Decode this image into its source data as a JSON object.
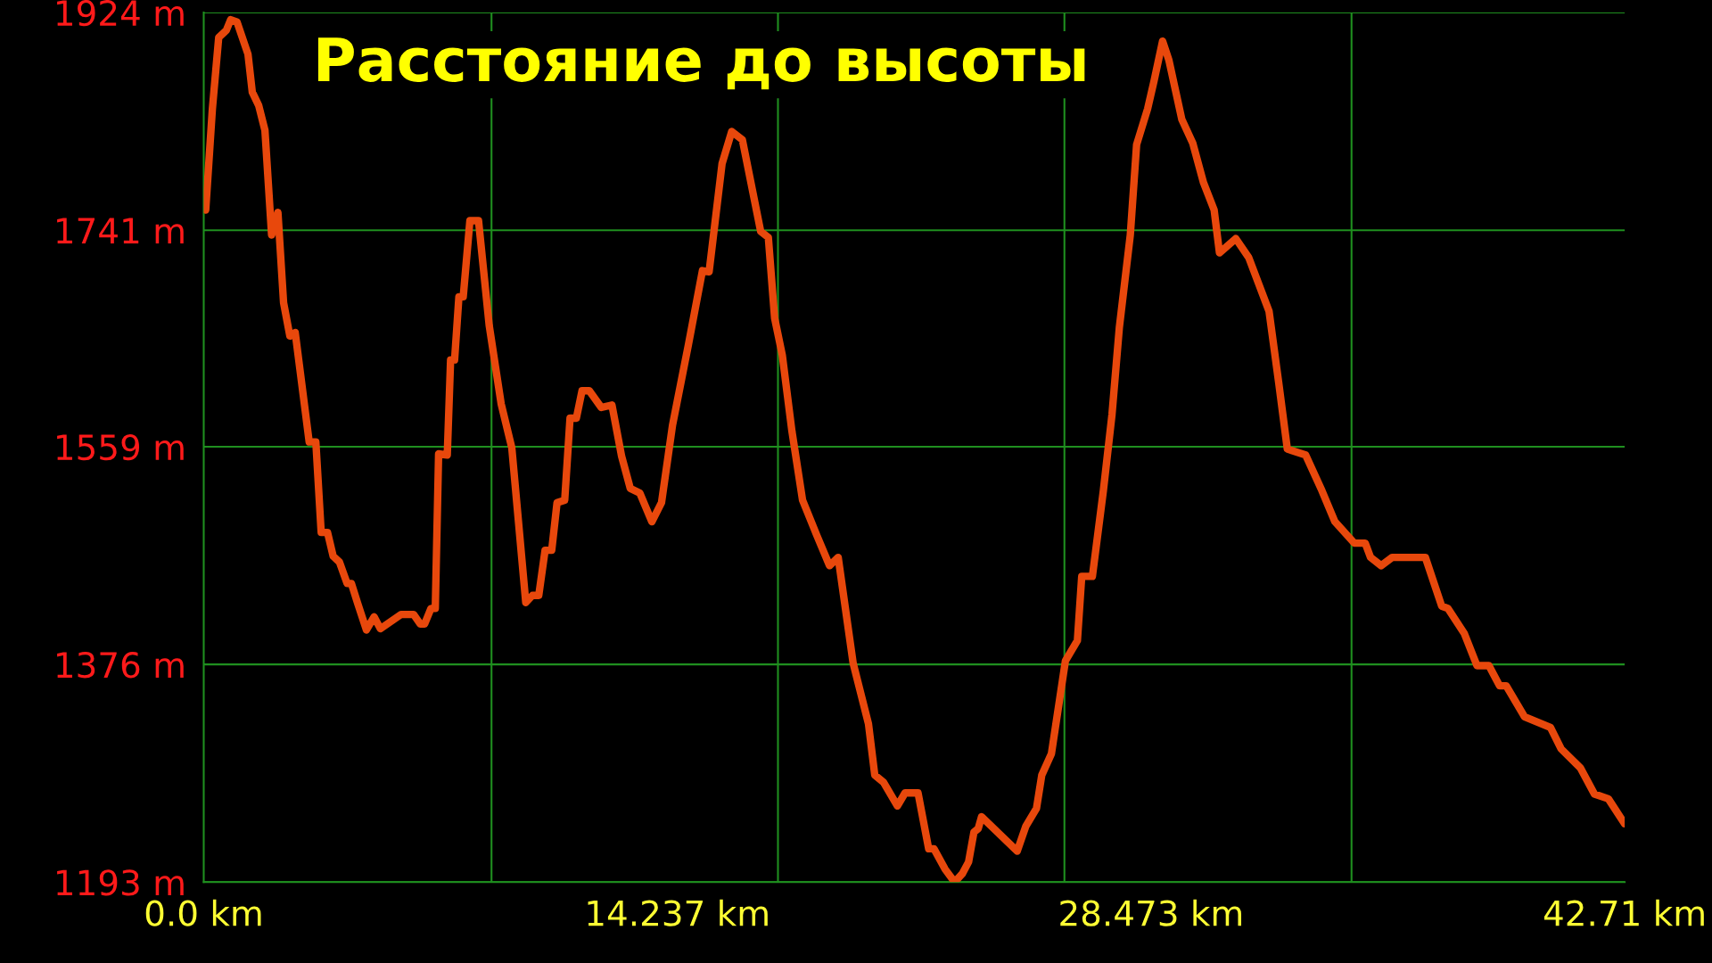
{
  "chart_data": {
    "type": "line",
    "title": "Расстояние до высоты",
    "x": [
      0.06,
      0.26,
      0.45,
      0.68,
      0.81,
      1.0,
      1.33,
      1.46,
      1.65,
      1.84,
      2.04,
      2.23,
      2.4,
      2.59,
      2.75,
      3.17,
      3.37,
      3.53,
      3.72,
      3.89,
      4.08,
      4.31,
      4.44,
      4.63,
      4.89,
      5.12,
      5.31,
      5.93,
      6.31,
      6.51,
      6.64,
      6.83,
      6.96,
      7.06,
      7.32,
      7.42,
      7.54,
      7.67,
      7.8,
      8.0,
      8.26,
      8.58,
      8.94,
      9.26,
      9.68,
      9.88,
      10.07,
      10.26,
      10.46,
      10.62,
      10.85,
      11.01,
      11.2,
      11.37,
      11.59,
      11.95,
      12.27,
      12.56,
      12.82,
      13.11,
      13.47,
      13.76,
      14.09,
      14.57,
      14.99,
      15.19,
      15.58,
      15.87,
      16.19,
      16.74,
      16.97,
      17.16,
      17.39,
      17.68,
      18.0,
      18.42,
      18.81,
      19.07,
      19.52,
      19.98,
      20.17,
      20.43,
      20.85,
      21.08,
      21.47,
      21.79,
      21.95,
      22.28,
      22.57,
      22.8,
      22.99,
      23.15,
      23.28,
      23.38,
      24.45,
      24.71,
      25.03,
      25.19,
      25.48,
      25.9,
      26.26,
      26.39,
      26.71,
      27.04,
      27.3,
      27.52,
      27.85,
      28.04,
      28.37,
      28.56,
      28.82,
      29.01,
      29.4,
      29.73,
      30.05,
      30.37,
      30.53,
      31.02,
      31.41,
      32.02,
      32.31,
      32.57,
      33.12,
      33.61,
      34.0,
      34.58,
      34.91,
      35.07,
      35.39,
      35.72,
      36.72,
      37.21,
      37.4,
      37.89,
      38.27,
      38.63,
      38.95,
      39.15,
      39.7,
      40.48,
      40.8,
      41.38,
      41.8,
      42.22,
      42.71
    ],
    "series": [
      {
        "color": "#e8480c",
        "values": [
          1758,
          1843,
          1903,
          1909,
          1918,
          1916,
          1889,
          1857,
          1846,
          1825,
          1737,
          1756,
          1680,
          1652,
          1655,
          1563,
          1563,
          1487,
          1487,
          1467,
          1462,
          1444,
          1444,
          1427,
          1405,
          1416,
          1406,
          1418,
          1418,
          1410,
          1410,
          1423,
          1423,
          1553,
          1552,
          1632,
          1632,
          1685,
          1685,
          1749,
          1749,
          1661,
          1595,
          1558,
          1428,
          1434,
          1434,
          1472,
          1472,
          1512,
          1514,
          1583,
          1583,
          1606,
          1606,
          1592,
          1594,
          1551,
          1524,
          1520,
          1496,
          1512,
          1577,
          1645,
          1707,
          1706,
          1797,
          1824,
          1817,
          1740,
          1735,
          1667,
          1636,
          1572,
          1514,
          1485,
          1459,
          1466,
          1377,
          1326,
          1283,
          1277,
          1257,
          1268,
          1268,
          1221,
          1221,
          1204,
          1193,
          1200,
          1210,
          1235,
          1238,
          1248,
          1219,
          1240,
          1255,
          1283,
          1301,
          1379,
          1396,
          1450,
          1450,
          1522,
          1586,
          1659,
          1737,
          1813,
          1843,
          1866,
          1900,
          1884,
          1834,
          1814,
          1781,
          1758,
          1722,
          1734,
          1718,
          1673,
          1613,
          1557,
          1552,
          1522,
          1496,
          1478,
          1478,
          1466,
          1459,
          1466,
          1466,
          1425,
          1423,
          1402,
          1375,
          1375,
          1358,
          1358,
          1332,
          1323,
          1305,
          1289,
          1267,
          1263,
          1242
        ]
      }
    ],
    "xlim": [
      0,
      42.71
    ],
    "ylim": [
      1193,
      1924
    ],
    "xticks": [
      {
        "value": 0,
        "label": "0.0 km"
      },
      {
        "value": 14.237,
        "label": "14.237 km"
      },
      {
        "value": 28.473,
        "label": "28.473 km"
      },
      {
        "value": 42.71,
        "label": "42.71 km"
      }
    ],
    "yticks": [
      {
        "value": 1193,
        "label": "1193 m"
      },
      {
        "value": 1376,
        "label": "1376 m"
      },
      {
        "value": 1559,
        "label": "1559 m"
      },
      {
        "value": 1741,
        "label": "1741 m"
      },
      {
        "value": 1924,
        "label": "1924 m"
      }
    ],
    "grid": "y",
    "ref_lines": [
      {
        "axis": "x",
        "value": 8.65,
        "color": "#1f8f1f"
      },
      {
        "axis": "x",
        "value": 17.26,
        "color": "#1f8f1f"
      },
      {
        "axis": "x",
        "value": 25.87,
        "color": "#1f8f1f"
      },
      {
        "axis": "x",
        "value": 34.5,
        "color": "#1f8f1f"
      }
    ],
    "marker": "none",
    "line_style": "solid"
  }
}
